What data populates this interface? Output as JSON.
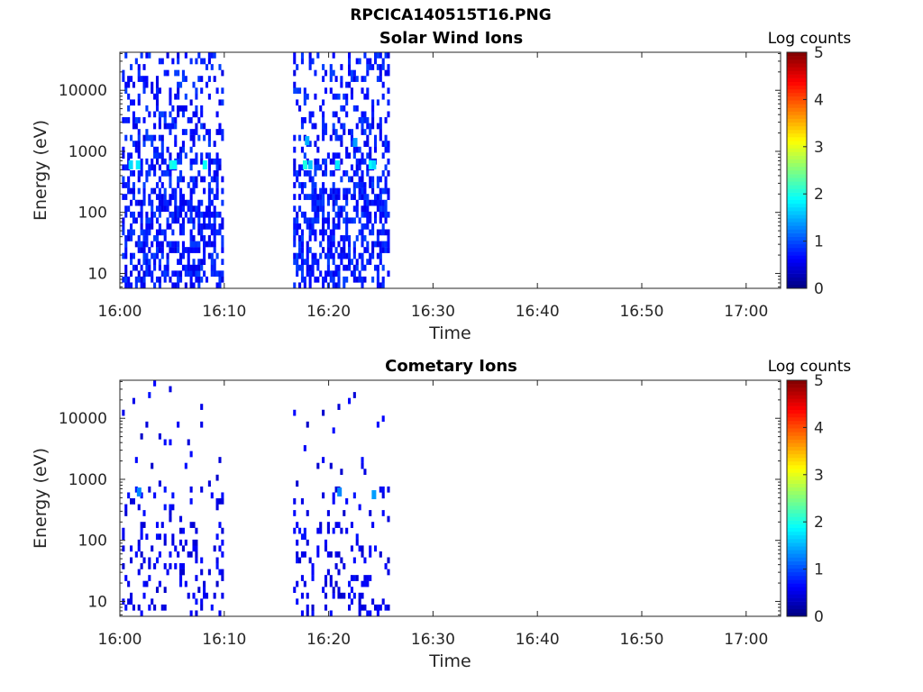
{
  "figure_title": "RPCICA140515T16.PNG",
  "colorbar": {
    "label": "Log counts",
    "range": [
      0,
      5
    ],
    "ticks": [
      "0",
      "1",
      "2",
      "3",
      "4",
      "5"
    ],
    "colormap": "jet"
  },
  "chart_data": [
    {
      "type": "heatmap",
      "title": "Solar Wind Ions",
      "xlabel": "Time",
      "ylabel": "Energy (eV)",
      "x_ticks": [
        "16:00",
        "16:10",
        "16:20",
        "16:30",
        "16:40",
        "16:50",
        "17:00"
      ],
      "y_ticks": [
        "10",
        "100",
        "1000",
        "10000"
      ],
      "y_scale": "log",
      "x_range_minutes": [
        0,
        63.3
      ],
      "y_range_ev": [
        5.7,
        42000
      ],
      "data_intervals_minutes": [
        [
          0.2,
          9.9
        ],
        [
          16.6,
          25.8
        ]
      ],
      "cells": [
        {
          "t": 1.0,
          "e": 600,
          "v": 1.7
        },
        {
          "t": 1.7,
          "e": 600,
          "v": 1.8
        },
        {
          "t": 4.9,
          "e": 600,
          "v": 2.0
        },
        {
          "t": 5.2,
          "e": 600,
          "v": 1.9
        },
        {
          "t": 8.1,
          "e": 600,
          "v": 1.9
        },
        {
          "t": 17.7,
          "e": 600,
          "v": 2.0
        },
        {
          "t": 18.2,
          "e": 600,
          "v": 1.6
        },
        {
          "t": 20.8,
          "e": 600,
          "v": 1.8
        },
        {
          "t": 24.0,
          "e": 600,
          "v": 1.9
        },
        {
          "t": 24.3,
          "e": 600,
          "v": 1.7
        },
        {
          "t": 17.9,
          "e": 1500,
          "v": 1.5
        },
        {
          "t": 22.5,
          "e": 1400,
          "v": 1.4
        }
      ],
      "background_level": 0.8
    },
    {
      "type": "heatmap",
      "title": "Cometary Ions",
      "xlabel": "Time",
      "ylabel": "Energy (eV)",
      "x_ticks": [
        "16:00",
        "16:10",
        "16:20",
        "16:30",
        "16:40",
        "16:50",
        "17:00"
      ],
      "y_ticks": [
        "10",
        "100",
        "1000",
        "10000"
      ],
      "y_scale": "log",
      "x_range_minutes": [
        0,
        63.3
      ],
      "y_range_ev": [
        5.7,
        42000
      ],
      "data_intervals_minutes": [
        [
          0.2,
          9.9
        ],
        [
          16.6,
          25.8
        ]
      ],
      "cells": [
        {
          "t": 1.8,
          "e": 620,
          "v": 1.3
        },
        {
          "t": 21.0,
          "e": 620,
          "v": 1.3
        },
        {
          "t": 24.3,
          "e": 560,
          "v": 1.4
        }
      ],
      "background_level": 0.6
    }
  ]
}
